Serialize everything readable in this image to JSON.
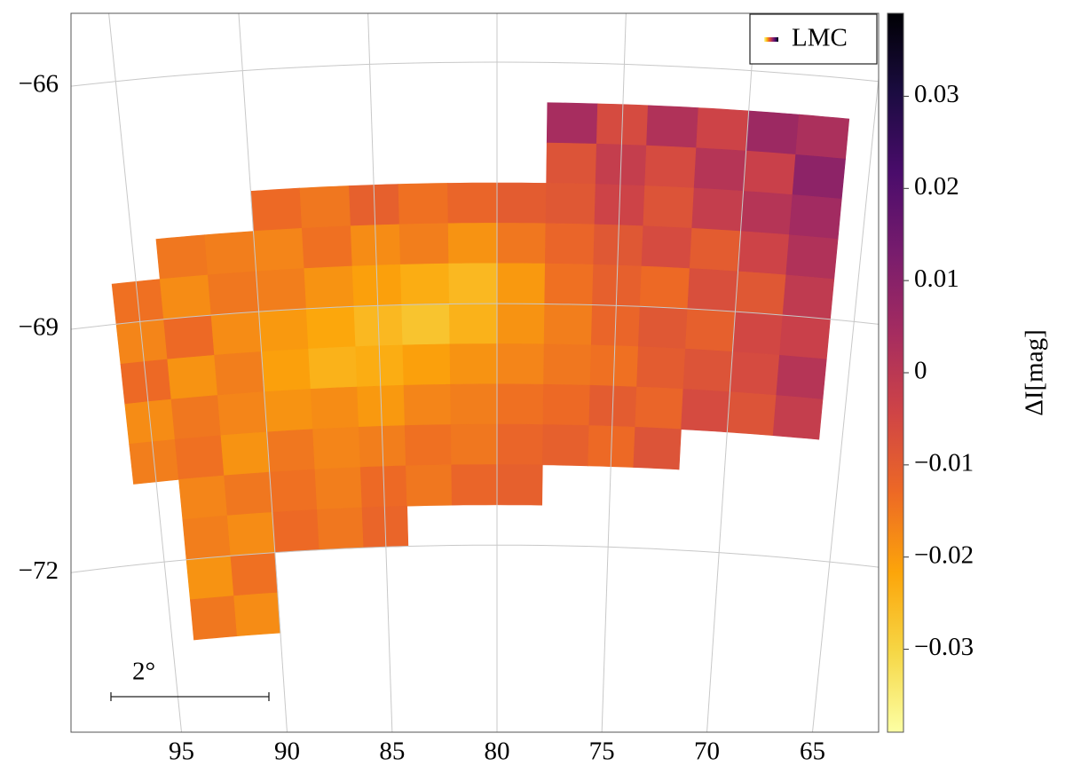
{
  "chart_data": {
    "type": "heatmap-map",
    "x": [
      95,
      93,
      91,
      89,
      87,
      85,
      83,
      81,
      79,
      77,
      75,
      73,
      71,
      69,
      67
    ],
    "y": [
      -66.75,
      -67.25,
      -67.75,
      -68.25,
      -68.75,
      -69.25,
      -69.75,
      -70.25,
      -70.75,
      -71.25,
      -71.75,
      -72.25,
      -72.75
    ],
    "values": [
      [
        null,
        null,
        null,
        null,
        null,
        null,
        null,
        null,
        null,
        0.004,
        -0.006,
        0.002,
        -0.004,
        0.006,
        0.003
      ],
      [
        null,
        null,
        null,
        null,
        null,
        null,
        null,
        null,
        null,
        -0.008,
        -0.002,
        -0.006,
        0.001,
        -0.003,
        0.009
      ],
      [
        null,
        null,
        null,
        -0.013,
        -0.015,
        -0.011,
        -0.014,
        -0.012,
        -0.01,
        -0.009,
        -0.004,
        -0.008,
        -0.002,
        0.001,
        0.005
      ],
      [
        null,
        -0.015,
        -0.016,
        -0.017,
        -0.014,
        -0.018,
        -0.016,
        -0.019,
        -0.015,
        -0.012,
        -0.009,
        -0.006,
        -0.01,
        -0.004,
        0.002
      ],
      [
        -0.014,
        -0.018,
        -0.015,
        -0.016,
        -0.019,
        -0.021,
        -0.023,
        -0.025,
        -0.02,
        -0.014,
        -0.011,
        -0.013,
        -0.007,
        -0.009,
        -0.001
      ],
      [
        -0.017,
        -0.013,
        -0.018,
        -0.02,
        -0.022,
        -0.025,
        -0.027,
        -0.024,
        -0.019,
        -0.016,
        -0.012,
        -0.009,
        -0.011,
        -0.005,
        -0.003
      ],
      [
        -0.013,
        -0.019,
        -0.016,
        -0.021,
        -0.024,
        -0.023,
        -0.021,
        -0.019,
        -0.017,
        -0.015,
        -0.014,
        -0.01,
        -0.008,
        -0.006,
        0.001
      ],
      [
        -0.018,
        -0.015,
        -0.017,
        -0.019,
        -0.018,
        -0.02,
        -0.017,
        -0.016,
        -0.014,
        -0.013,
        -0.01,
        -0.012,
        -0.006,
        -0.008,
        -0.002
      ],
      [
        -0.016,
        -0.014,
        -0.019,
        -0.015,
        -0.017,
        -0.016,
        -0.014,
        -0.015,
        -0.012,
        -0.011,
        -0.013,
        -0.008,
        null,
        null,
        null
      ],
      [
        null,
        -0.017,
        -0.015,
        -0.014,
        -0.016,
        -0.013,
        -0.015,
        -0.012,
        -0.011,
        null,
        null,
        null,
        null,
        null,
        null
      ],
      [
        null,
        -0.016,
        -0.018,
        -0.013,
        -0.015,
        -0.012,
        null,
        null,
        null,
        null,
        null,
        null,
        null,
        null,
        null
      ],
      [
        null,
        -0.019,
        -0.014,
        null,
        null,
        null,
        null,
        null,
        null,
        null,
        null,
        null,
        null,
        null,
        null
      ],
      [
        null,
        -0.015,
        -0.018,
        null,
        null,
        null,
        null,
        null,
        null,
        null,
        null,
        null,
        null,
        null,
        null
      ]
    ],
    "xticks": [
      95,
      90,
      85,
      80,
      75,
      70,
      65
    ],
    "yticks": [
      {
        "value": -66,
        "label": "−66"
      },
      {
        "value": -69,
        "label": "−69"
      },
      {
        "value": -72,
        "label": "−72"
      }
    ],
    "grid": true,
    "colormap": [
      "#fcffa4",
      "#f6d746",
      "#fca50a",
      "#ed6925",
      "#cf4446",
      "#a52c60",
      "#781c6d",
      "#4a0c6b",
      "#1b0c41",
      "#000004"
    ],
    "clim": [
      -0.039,
      0.039
    ],
    "colorbar_ticks": [
      {
        "value": -0.03,
        "label": "−0.03"
      },
      {
        "value": -0.02,
        "label": "−0.02"
      },
      {
        "value": -0.01,
        "label": "−0.01"
      },
      0,
      0.01,
      0.02,
      0.03
    ],
    "colorbar_label": "ΔI[mag]",
    "legend": {
      "label": "LMC",
      "loc": "upper right"
    },
    "scale_bar_label": "2°"
  }
}
